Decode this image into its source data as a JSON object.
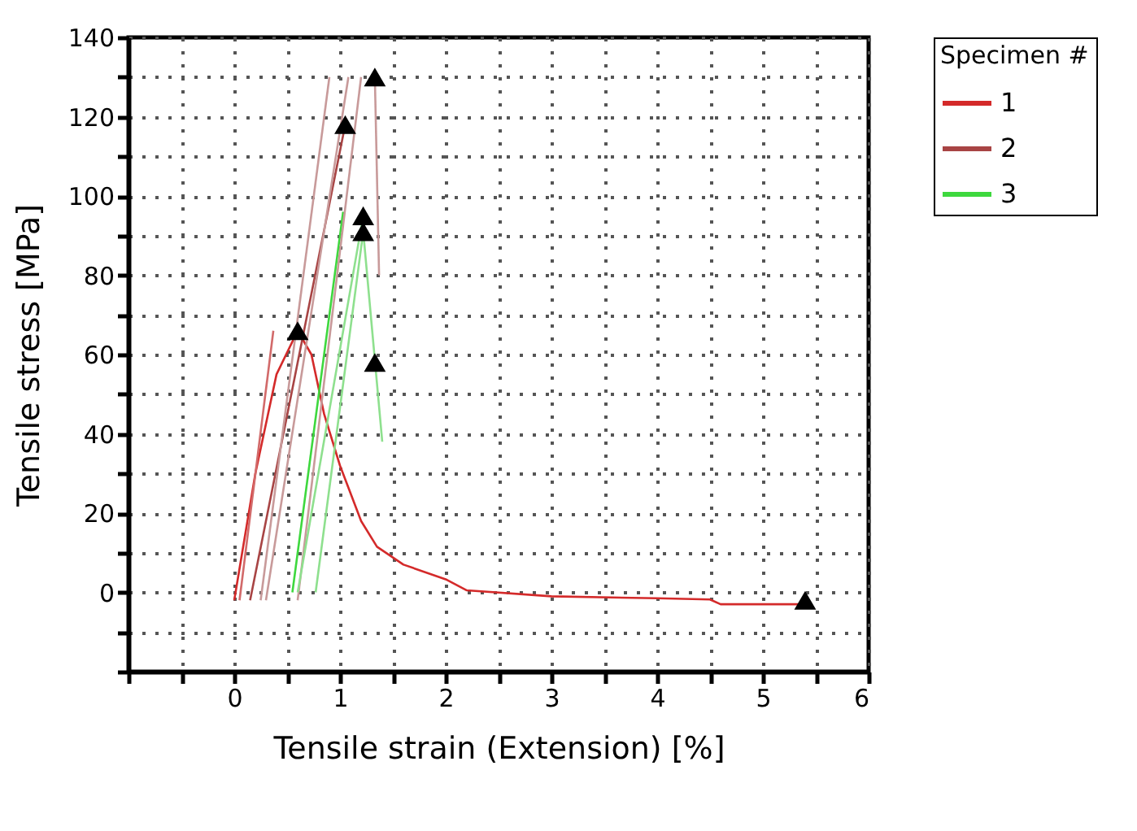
{
  "chart_data": {
    "type": "line",
    "xlabel": "Tensile strain (Extension) [%]",
    "ylabel": "Tensile stress [MPa]",
    "legend_title": "Specimen #",
    "legend": "right",
    "grid": true,
    "line_style": "solid",
    "marker": "none",
    "xlim": [
      -1,
      6
    ],
    "ylim": [
      -20,
      140
    ],
    "xticks": [
      {
        "value": -1,
        "label": null
      },
      {
        "value": -0.5,
        "label": null
      },
      0,
      {
        "value": 0.5,
        "label": null
      },
      1,
      {
        "value": 1.5,
        "label": null
      },
      2,
      {
        "value": 2.5,
        "label": null
      },
      3,
      {
        "value": 3.5,
        "label": null
      },
      4,
      {
        "value": 4.5,
        "label": null
      },
      5,
      {
        "value": 5.5,
        "label": null
      },
      6
    ],
    "yticks": [
      {
        "value": -20,
        "label": null
      },
      {
        "value": -10,
        "label": null
      },
      0,
      {
        "value": 10,
        "label": null
      },
      20,
      {
        "value": 30,
        "label": null
      },
      40,
      {
        "value": 50,
        "label": null
      },
      60,
      {
        "value": 70,
        "label": null
      },
      80,
      {
        "value": 90,
        "label": null
      },
      100,
      {
        "value": 110,
        "label": null
      },
      120,
      {
        "value": 130,
        "label": null
      },
      140
    ],
    "series": [
      {
        "name": "1",
        "color": "#d42a2a",
        "x": [
          0,
          0.2,
          0.4,
          0.6,
          0.73,
          0.85,
          1.0,
          1.2,
          1.35,
          1.6,
          2.0,
          2.2,
          3,
          4,
          4.5,
          4.6,
          5.4
        ],
        "values": [
          -2,
          30,
          55,
          66,
          60,
          45,
          32,
          18,
          11.5,
          7,
          3.3,
          0.5,
          -1,
          -1.5,
          -1.8,
          -3,
          -3
        ]
      },
      {
        "name": "2",
        "color": "#a84444",
        "x": [
          0.15,
          1.05
        ],
        "values": [
          -2,
          118
        ]
      },
      {
        "name": "3",
        "color": "#3ed83e",
        "x": [
          0.55,
          1.03
        ],
        "values": [
          0,
          96
        ]
      },
      {
        "color": "#d26a6a",
        "x": [
          0.05,
          0.37
        ],
        "values": [
          -2,
          66
        ]
      },
      {
        "color": "#c89a9a",
        "x": [
          0.25,
          0.9
        ],
        "values": [
          -2,
          130
        ]
      },
      {
        "color": "#c89a9a",
        "x": [
          0.3,
          1.08
        ],
        "values": [
          -2,
          130
        ]
      },
      {
        "color": "#c89a9a",
        "x": [
          0.6,
          1.2
        ],
        "values": [
          -2,
          130
        ]
      },
      {
        "color": "#c89a9a",
        "x": [
          1.33,
          1.37
        ],
        "values": [
          130,
          80
        ]
      },
      {
        "color": "#8ee08e",
        "x": [
          0.77,
          1.22,
          1.4
        ],
        "values": [
          0,
          91,
          38
        ]
      },
      {
        "color": "#8ee08e",
        "x": [
          0.6,
          1.22
        ],
        "values": [
          0,
          95
        ]
      },
      {
        "type": "scatter",
        "marker": "triangle",
        "color": "#000000",
        "x": [
          0.6,
          1.05,
          1.33,
          1.22,
          1.22,
          1.33,
          5.4
        ],
        "values": [
          66,
          118,
          130,
          95,
          91,
          58,
          -2
        ]
      }
    ]
  }
}
